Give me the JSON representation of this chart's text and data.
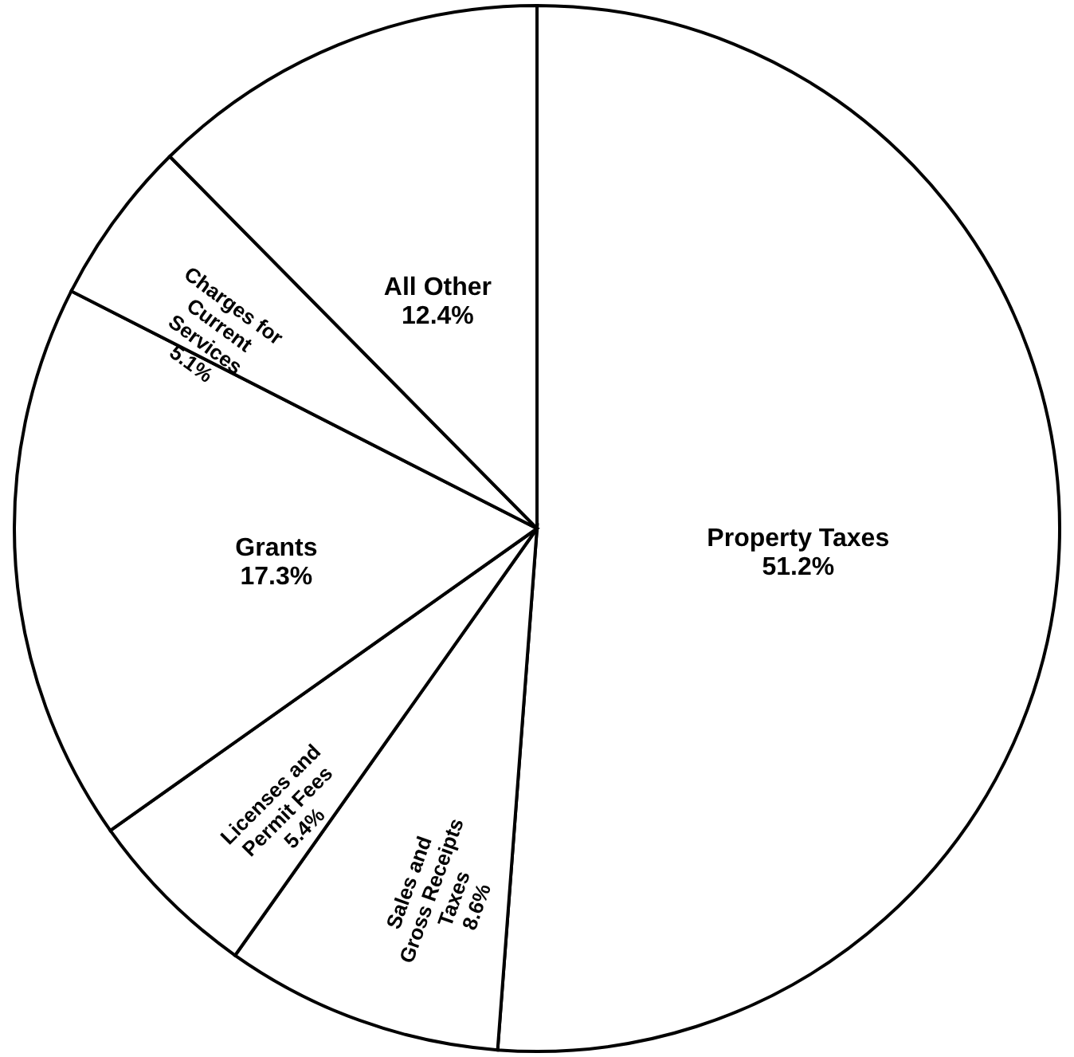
{
  "chart_data": {
    "type": "pie",
    "categories": [
      "Property Taxes",
      "Sales and Gross Receipts Taxes",
      "Licenses and Permit Fees",
      "Grants",
      "Charges for Current Services",
      "All Other"
    ],
    "values": [
      51.2,
      8.6,
      5.4,
      17.3,
      5.1,
      12.4
    ],
    "value_labels": [
      "51.2%",
      "8.6%",
      "5.4%",
      "17.3%",
      "5.1%",
      "12.4%"
    ],
    "colors": [
      "#ffffff",
      "#ffffff",
      "#ffffff",
      "#ffffff",
      "#ffffff",
      "#ffffff"
    ]
  }
}
